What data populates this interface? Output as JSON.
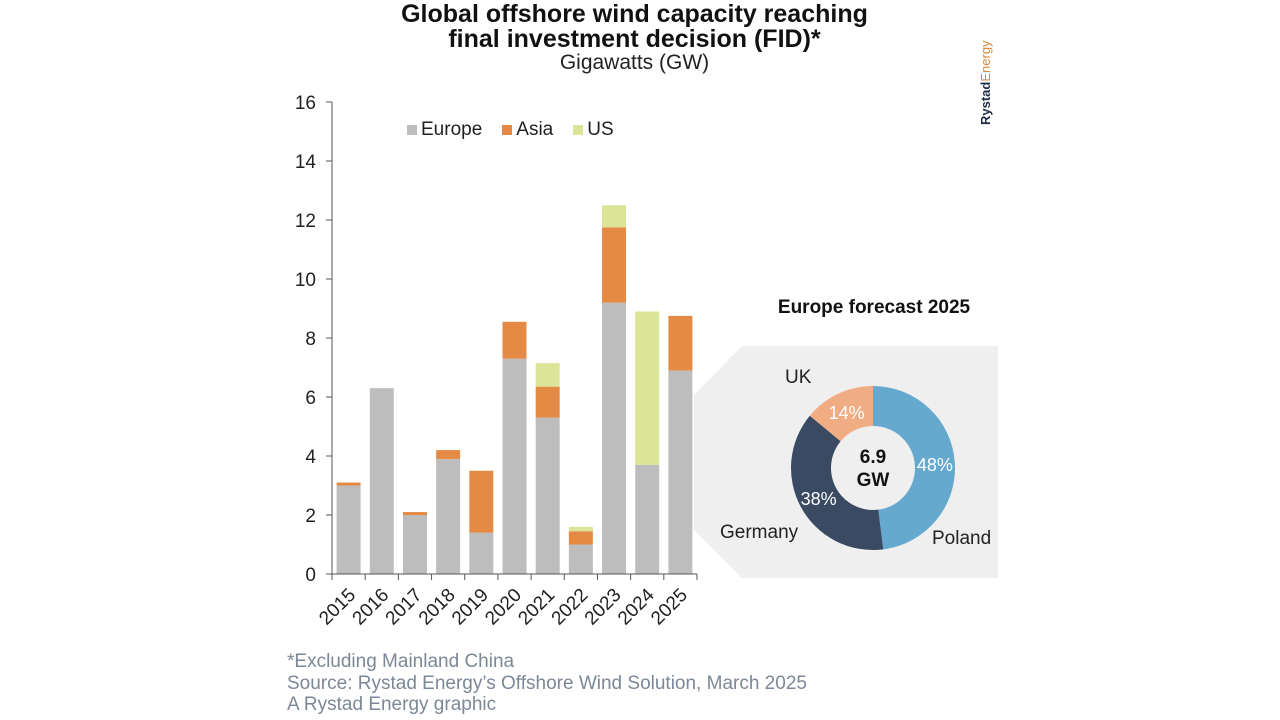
{
  "header": {
    "title_line1": "Global offshore wind capacity reaching",
    "title_line2": "final investment decision (FID)*",
    "subtitle": "Gigawatts (GW)"
  },
  "brand": {
    "part1": "Rystad",
    "part2": "Energy"
  },
  "footer": {
    "note": "*Excluding Mainland China",
    "source": "Source: Rystad Energy’s Offshore Wind Solution, March 2025",
    "credit": "A Rystad Energy graphic"
  },
  "colors": {
    "Europe": "#bdbdbd",
    "Asia": "#e58a45",
    "US": "#dbe497",
    "Poland": "#66a9cf",
    "Germany": "#3a4a63",
    "UK": "#f0ad84",
    "panel": "#efefef"
  },
  "chart_data": [
    {
      "type": "bar",
      "stacked": true,
      "title": "Global offshore wind capacity reaching final investment decision (FID)*",
      "subtitle": "Gigawatts (GW)",
      "xlabel": "",
      "ylabel": "Gigawatts (GW)",
      "ylim": [
        0,
        16
      ],
      "yticks": [
        0,
        2,
        4,
        6,
        8,
        10,
        12,
        14,
        16
      ],
      "grid": false,
      "legend_position": "top-center",
      "categories": [
        "2015",
        "2016",
        "2017",
        "2018",
        "2019",
        "2020",
        "2021",
        "2022",
        "2023",
        "2024",
        "2025"
      ],
      "series": [
        {
          "name": "Europe",
          "values": [
            3.0,
            6.3,
            2.0,
            3.9,
            1.4,
            7.3,
            5.3,
            1.0,
            9.2,
            3.7,
            6.9
          ]
        },
        {
          "name": "Asia",
          "values": [
            0.1,
            0.0,
            0.1,
            0.3,
            2.1,
            1.25,
            1.05,
            0.45,
            2.55,
            0.0,
            1.85
          ]
        },
        {
          "name": "US",
          "values": [
            0.0,
            0.0,
            0.0,
            0.0,
            0.0,
            0.0,
            0.8,
            0.15,
            0.75,
            5.2,
            0.0
          ]
        }
      ]
    },
    {
      "type": "pie",
      "donut": true,
      "title": "Europe forecast 2025",
      "center_label": [
        "6.9",
        "GW"
      ],
      "slices": [
        {
          "label": "Poland",
          "value": 48,
          "display": "48%"
        },
        {
          "label": "Germany",
          "value": 38,
          "display": "38%"
        },
        {
          "label": "UK",
          "value": 14,
          "display": "14%"
        }
      ]
    }
  ]
}
